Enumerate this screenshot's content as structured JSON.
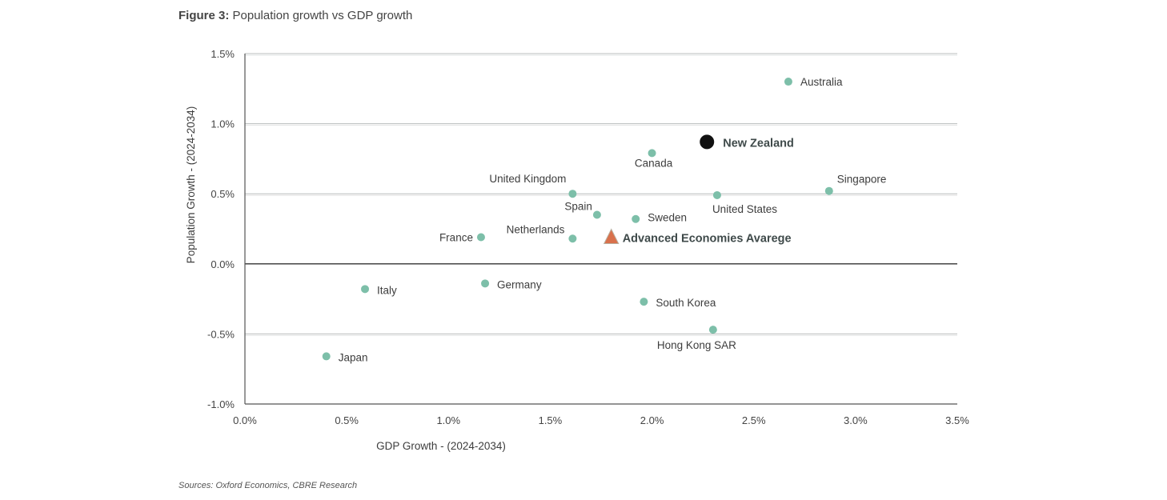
{
  "chart_data": {
    "type": "scatter",
    "title_prefix": "Figure 3:",
    "title": "Population growth vs GDP growth",
    "xlabel": "GDP Growth - (2024-2034)",
    "ylabel": "Population Growth - (2024-2034)",
    "xlim": [
      0,
      3.5
    ],
    "ylim": [
      -1.0,
      1.5
    ],
    "x_ticks": [
      "0.0%",
      "0.5%",
      "1.0%",
      "1.5%",
      "2.0%",
      "2.5%",
      "3.0%",
      "3.5%"
    ],
    "y_ticks": [
      "-1.0%",
      "-0.5%",
      "0.0%",
      "0.5%",
      "1.0%",
      "1.5%"
    ],
    "grid": "horizontal",
    "colors": {
      "country": "#7dbfa9",
      "highlight": "#111111",
      "average": "#d9714c"
    },
    "points": [
      {
        "name": "Australia",
        "x": 2.67,
        "y": 1.3,
        "kind": "country"
      },
      {
        "name": "New Zealand",
        "x": 2.27,
        "y": 0.87,
        "kind": "highlight"
      },
      {
        "name": "Canada",
        "x": 2.0,
        "y": 0.79,
        "kind": "country"
      },
      {
        "name": "Singapore",
        "x": 2.87,
        "y": 0.52,
        "kind": "country"
      },
      {
        "name": "United States",
        "x": 2.32,
        "y": 0.49,
        "kind": "country"
      },
      {
        "name": "United Kingdom",
        "x": 1.61,
        "y": 0.5,
        "kind": "country"
      },
      {
        "name": "Spain",
        "x": 1.73,
        "y": 0.35,
        "kind": "country"
      },
      {
        "name": "Sweden",
        "x": 1.92,
        "y": 0.32,
        "kind": "country"
      },
      {
        "name": "France",
        "x": 1.16,
        "y": 0.19,
        "kind": "country"
      },
      {
        "name": "Netherlands",
        "x": 1.61,
        "y": 0.18,
        "kind": "country"
      },
      {
        "name": "Advanced Economies Avarege",
        "x": 1.8,
        "y": 0.19,
        "kind": "average"
      },
      {
        "name": "Italy",
        "x": 0.59,
        "y": -0.18,
        "kind": "country"
      },
      {
        "name": "Germany",
        "x": 1.18,
        "y": -0.14,
        "kind": "country"
      },
      {
        "name": "South Korea",
        "x": 1.96,
        "y": -0.27,
        "kind": "country"
      },
      {
        "name": "Hong Kong SAR",
        "x": 2.3,
        "y": -0.47,
        "kind": "country"
      },
      {
        "name": "Japan",
        "x": 0.4,
        "y": -0.66,
        "kind": "country"
      }
    ]
  },
  "source": "Sources: Oxford Economics, CBRE Research"
}
